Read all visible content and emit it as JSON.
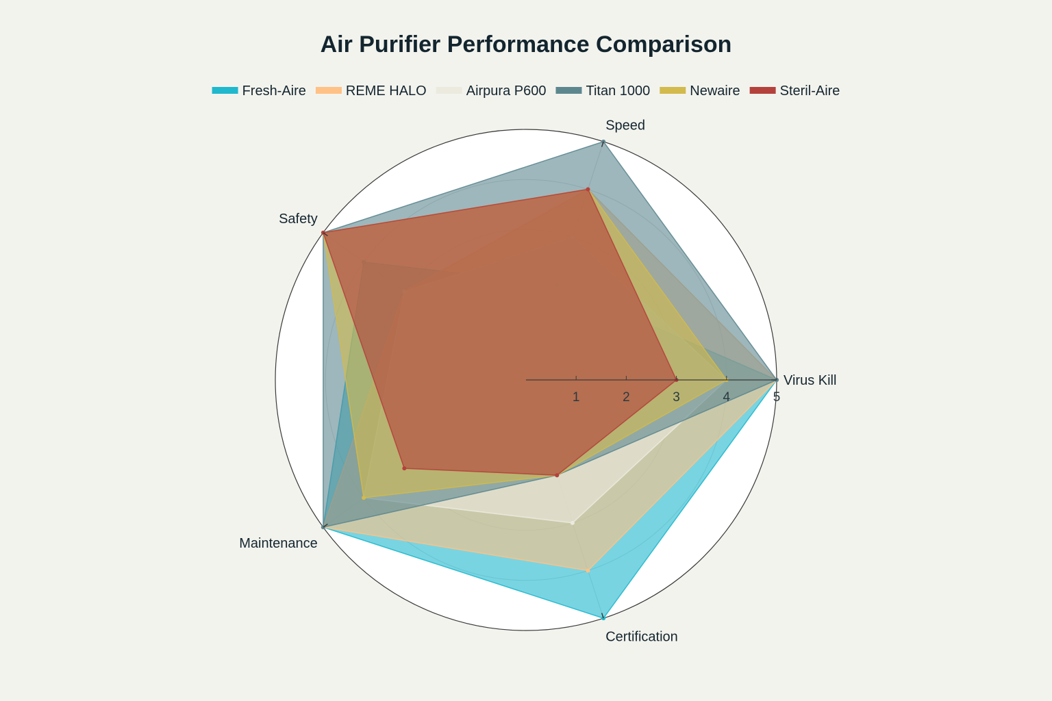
{
  "chart_data": {
    "type": "radar",
    "title": "Air Purifier Performance Comparison",
    "axes": [
      "Virus Kill",
      "Speed",
      "Safety",
      "Maintenance",
      "Certification"
    ],
    "radial_range": [
      0,
      5
    ],
    "radial_ticks": [
      "1",
      "2",
      "3",
      "4",
      "5"
    ],
    "legend_position": "top-center",
    "series": [
      {
        "name": "Fresh-Aire",
        "color": "#1fb8cd",
        "values": [
          5,
          2,
          4,
          5,
          5
        ]
      },
      {
        "name": "REME HALO",
        "color": "#ffc185",
        "values": [
          5,
          4,
          3,
          5,
          4
        ]
      },
      {
        "name": "Airpura P600",
        "color": "#eceade",
        "values": [
          4,
          3,
          3,
          4,
          3
        ]
      },
      {
        "name": "Titan 1000",
        "color": "#5d878f",
        "values": [
          5,
          5,
          5,
          5,
          2
        ]
      },
      {
        "name": "Newaire",
        "color": "#d2ba4c",
        "values": [
          4,
          4,
          5,
          4,
          2
        ]
      },
      {
        "name": "Steril-Aire",
        "color": "#b4413c",
        "values": [
          3,
          4,
          5,
          3,
          2
        ]
      }
    ]
  }
}
